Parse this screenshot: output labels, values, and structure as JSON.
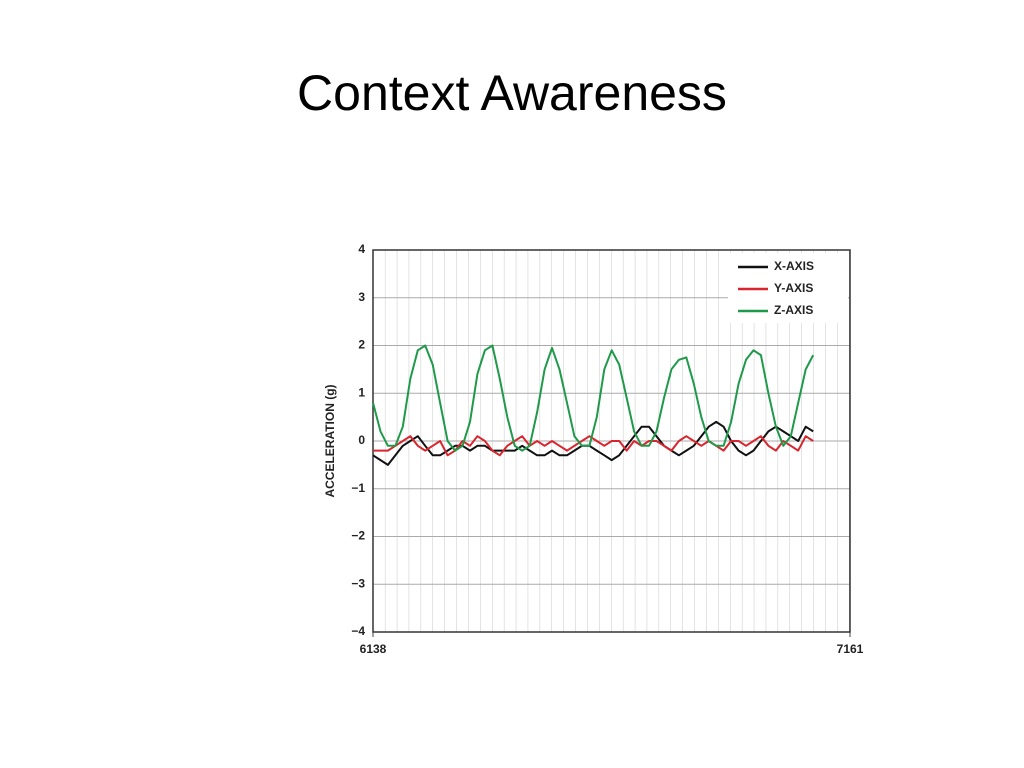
{
  "title": "Context Awareness",
  "chart_data": {
    "type": "line",
    "ylabel": "ACCELERATION (g)",
    "x": [
      6138,
      6154,
      6170,
      6186,
      6202,
      6218,
      6234,
      6250,
      6266,
      6282,
      6298,
      6314,
      6330,
      6346,
      6362,
      6378,
      6394,
      6410,
      6426,
      6442,
      6458,
      6474,
      6490,
      6506,
      6522,
      6538,
      6554,
      6570,
      6586,
      6602,
      6618,
      6634,
      6650,
      6666,
      6682,
      6698,
      6714,
      6730,
      6746,
      6762,
      6778,
      6794,
      6810,
      6826,
      6842,
      6858,
      6874,
      6890,
      6906,
      6922,
      6938,
      6954,
      6970,
      6986,
      7002,
      7018,
      7034,
      7050,
      7066,
      7082
    ],
    "series": [
      {
        "name": "X-AXIS",
        "color": "#111111",
        "values": [
          -0.3,
          -0.4,
          -0.5,
          -0.3,
          -0.1,
          0.0,
          0.1,
          -0.1,
          -0.3,
          -0.3,
          -0.2,
          -0.1,
          -0.1,
          -0.2,
          -0.1,
          -0.1,
          -0.2,
          -0.2,
          -0.2,
          -0.2,
          -0.1,
          -0.2,
          -0.3,
          -0.3,
          -0.2,
          -0.3,
          -0.3,
          -0.2,
          -0.1,
          -0.1,
          -0.2,
          -0.3,
          -0.4,
          -0.3,
          -0.1,
          0.1,
          0.3,
          0.3,
          0.1,
          -0.1,
          -0.2,
          -0.3,
          -0.2,
          -0.1,
          0.1,
          0.3,
          0.4,
          0.3,
          0.0,
          -0.2,
          -0.3,
          -0.2,
          0.0,
          0.2,
          0.3,
          0.2,
          0.1,
          0.0,
          0.3,
          0.2
        ]
      },
      {
        "name": "Y-AXIS",
        "color": "#d9262e",
        "values": [
          -0.2,
          -0.2,
          -0.2,
          -0.1,
          0.0,
          0.1,
          -0.1,
          -0.2,
          -0.1,
          0.0,
          -0.3,
          -0.2,
          0.0,
          -0.1,
          0.1,
          0.0,
          -0.2,
          -0.3,
          -0.1,
          0.0,
          0.1,
          -0.1,
          0.0,
          -0.1,
          0.0,
          -0.1,
          -0.2,
          -0.1,
          0.0,
          0.1,
          0.0,
          -0.1,
          0.0,
          0.0,
          -0.2,
          0.0,
          -0.1,
          0.0,
          0.0,
          -0.1,
          -0.2,
          0.0,
          0.1,
          0.0,
          -0.1,
          0.0,
          -0.1,
          -0.2,
          0.0,
          0.0,
          -0.1,
          0.0,
          0.1,
          -0.1,
          -0.2,
          0.0,
          -0.1,
          -0.2,
          0.1,
          0.0
        ]
      },
      {
        "name": "Z-AXIS",
        "color": "#1f9a4a",
        "values": [
          0.8,
          0.2,
          -0.1,
          -0.1,
          0.3,
          1.3,
          1.9,
          2.0,
          1.6,
          0.8,
          0.0,
          -0.2,
          -0.1,
          0.4,
          1.4,
          1.9,
          2.0,
          1.3,
          0.5,
          -0.1,
          -0.2,
          -0.1,
          0.6,
          1.5,
          1.95,
          1.5,
          0.8,
          0.1,
          -0.1,
          -0.1,
          0.5,
          1.5,
          1.9,
          1.6,
          0.9,
          0.2,
          -0.1,
          -0.1,
          0.2,
          0.9,
          1.5,
          1.7,
          1.75,
          1.2,
          0.5,
          0.0,
          -0.1,
          -0.1,
          0.4,
          1.2,
          1.7,
          1.9,
          1.8,
          1.0,
          0.3,
          -0.1,
          0.1,
          0.8,
          1.5,
          1.8
        ]
      }
    ],
    "xlim": [
      6138,
      7161
    ],
    "xticks": [
      6138,
      7161
    ],
    "ylim": [
      -4,
      4
    ],
    "yticks": [
      {
        "value": -4,
        "label": "−4"
      },
      {
        "value": -3,
        "label": "−3"
      },
      {
        "value": -2,
        "label": "−2"
      },
      {
        "value": -1,
        "label": "−1"
      },
      0,
      1,
      2,
      3,
      4
    ],
    "grid": true,
    "legend": "upper right"
  }
}
